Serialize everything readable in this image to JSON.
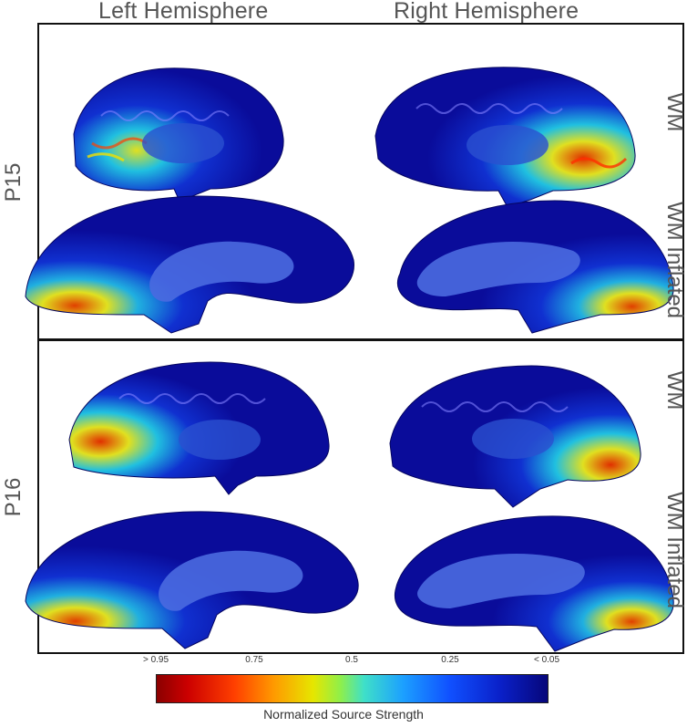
{
  "columns": {
    "left": "Left Hemisphere",
    "right": "Right Hemisphere"
  },
  "rows": [
    {
      "label": "P15",
      "side_top": "WM",
      "side_bottom": "WM Inflated"
    },
    {
      "label": "P16",
      "side_top": "WM",
      "side_bottom": "WM Inflated"
    }
  ],
  "colorbar": {
    "ticks": [
      "> 0.95",
      "0.75",
      "0.5",
      "0.25",
      "< 0.05"
    ],
    "label": "Normalized Source Strength"
  },
  "colors": {
    "low": "#0a10a0",
    "high": "#cc0000",
    "frame": "#111111"
  }
}
